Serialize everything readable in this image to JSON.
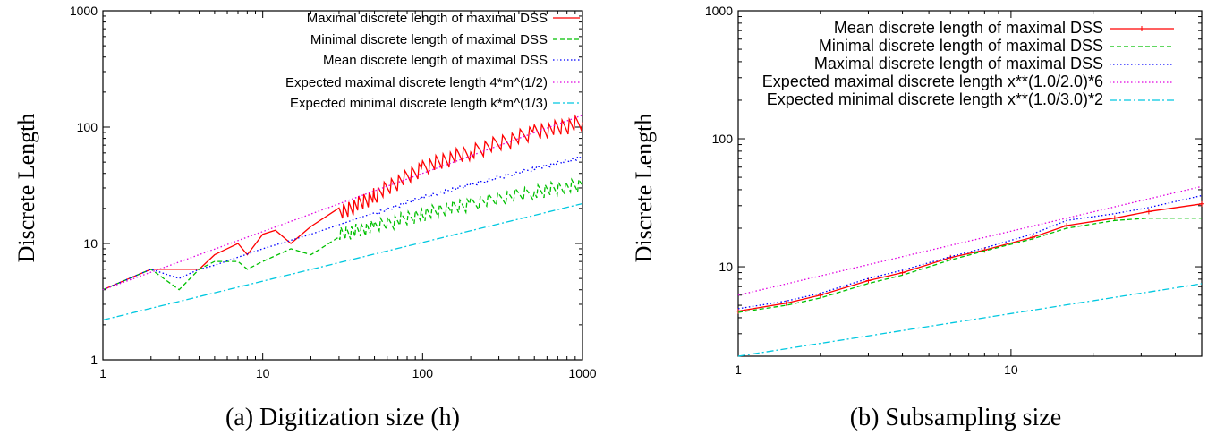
{
  "chart_data": [
    {
      "id": "a",
      "type": "line",
      "scale": "log-log",
      "caption": "(a) Digitization size (h)",
      "xlabel": "",
      "ylabel": "Discrete Length",
      "xlim": [
        1,
        1000
      ],
      "ylim": [
        1,
        1000
      ],
      "x_ticks": [
        "1",
        "10",
        "100",
        "1000"
      ],
      "y_ticks": [
        "1",
        "10",
        "100",
        "1000"
      ],
      "grid": false,
      "legend_position": "top-right",
      "series": [
        {
          "name": "Maximal discrete length of maximal DSS",
          "color": "#ff0000",
          "style": "solid",
          "x": [
            1,
            2,
            3,
            4,
            5,
            7,
            8,
            10,
            12,
            15,
            20,
            30,
            50,
            100,
            200,
            500,
            1000
          ],
          "y": [
            4,
            6,
            6,
            6,
            8,
            10,
            8,
            12,
            13,
            10,
            14,
            18,
            26,
            45,
            62,
            90,
            110
          ]
        },
        {
          "name": "Minimal discrete length of maximal DSS",
          "color": "#00c000",
          "style": "dashed",
          "x": [
            1,
            2,
            3,
            4,
            5,
            7,
            8,
            10,
            15,
            20,
            30,
            50,
            100,
            200,
            500,
            1000
          ],
          "y": [
            4,
            6,
            4,
            6,
            7,
            7,
            6,
            7,
            9,
            8,
            12,
            14,
            18,
            22,
            28,
            32
          ]
        },
        {
          "name": "Mean discrete length of maximal DSS",
          "color": "#0000ff",
          "style": "dotted",
          "x": [
            1,
            2,
            3,
            4,
            5,
            10,
            20,
            50,
            100,
            200,
            500,
            1000
          ],
          "y": [
            4,
            6,
            5,
            6,
            6.5,
            9,
            12,
            18,
            25,
            32,
            44,
            55
          ]
        },
        {
          "name": "Expected maximal discrete length 4*m^(1/2)",
          "color": "#e000e0",
          "style": "dotted",
          "x": [
            1,
            10,
            100,
            1000
          ],
          "y": [
            4,
            12.65,
            40,
            126.5
          ]
        },
        {
          "name": "Expected minimal discrete length k*m^(1/3)",
          "color": "#00c8e0",
          "style": "dashdot",
          "x": [
            1,
            10,
            100,
            1000
          ],
          "y": [
            2.2,
            4.74,
            10.21,
            22
          ]
        }
      ]
    },
    {
      "id": "b",
      "type": "line",
      "scale": "log-log",
      "caption": "(b) Subsampling size",
      "xlabel": "",
      "ylabel": "Discrete Length",
      "xlim": [
        1,
        50
      ],
      "ylim": [
        2,
        1000
      ],
      "x_ticks": [
        "1",
        "10"
      ],
      "y_ticks": [
        "10",
        "100",
        "1000"
      ],
      "grid": false,
      "legend_position": "top-right",
      "series": [
        {
          "name": "Mean discrete length of maximal DSS",
          "color": "#ff0000",
          "style": "solid-points",
          "x": [
            1,
            1.5,
            2,
            3,
            4,
            6,
            8,
            12,
            16,
            24,
            32,
            50
          ],
          "y": [
            4.5,
            5.2,
            6,
            7.8,
            9,
            11.8,
            13.5,
            17,
            21,
            24,
            27,
            31
          ]
        },
        {
          "name": "Minimal discrete length of maximal DSS",
          "color": "#00c000",
          "style": "dashed",
          "x": [
            1,
            1.5,
            2,
            3,
            4,
            6,
            8,
            12,
            16,
            24,
            32,
            50
          ],
          "y": [
            4.4,
            5,
            5.7,
            7.4,
            8.6,
            11.3,
            13.3,
            16.5,
            20,
            23,
            24,
            24
          ]
        },
        {
          "name": "Maximal discrete length of maximal DSS",
          "color": "#0000ff",
          "style": "dotted",
          "x": [
            1,
            1.5,
            2,
            3,
            4,
            6,
            8,
            12,
            16,
            24,
            32,
            50
          ],
          "y": [
            4.7,
            5.4,
            6.2,
            8.1,
            9.4,
            12,
            14,
            18,
            23,
            26,
            29,
            36
          ]
        },
        {
          "name": "Expected maximal discrete length x**(1.0/2.0)*6",
          "color": "#e000e0",
          "style": "dotted",
          "x": [
            1,
            50
          ],
          "y": [
            6,
            42.43
          ]
        },
        {
          "name": "Expected minimal discrete length x**(1.0/3.0)*2",
          "color": "#00c8e0",
          "style": "dashdot",
          "x": [
            1,
            50
          ],
          "y": [
            2,
            7.37
          ]
        }
      ]
    }
  ]
}
